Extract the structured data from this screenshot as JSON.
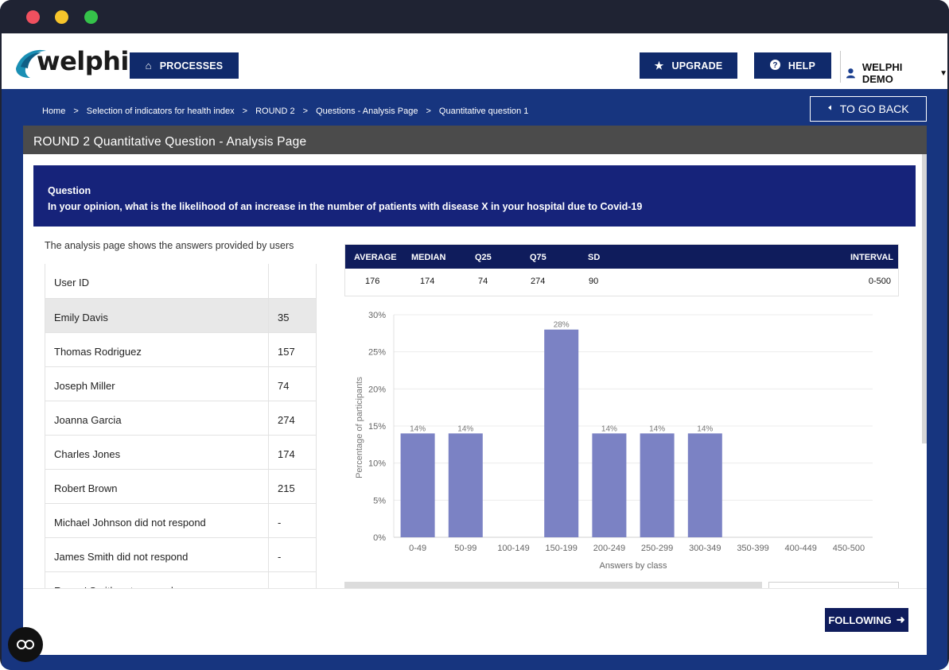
{
  "header": {
    "logo_text": "welphi",
    "processes_label": "PROCESSES",
    "upgrade_label": "UPGRADE",
    "help_label": "HELP",
    "user_name": "WELPHI DEMO"
  },
  "breadcrumb": [
    "Home",
    "Selection of indicators for health index",
    "ROUND 2",
    "Questions - Analysis Page",
    "Quantitative question 1"
  ],
  "go_back_label": "TO GO BACK",
  "panel_title": "ROUND 2 Quantitative Question - Analysis Page",
  "question": {
    "label": "Question",
    "text": "In your opinion, what is the likelihood of an increase in the number of patients with disease X in your hospital due to Covid-19"
  },
  "intro_text": "The analysis page shows the answers provided by users",
  "table": {
    "header": "User ID",
    "rows": [
      {
        "name": "Emily Davis",
        "value": "35"
      },
      {
        "name": "Thomas Rodriguez",
        "value": "157"
      },
      {
        "name": "Joseph Miller",
        "value": "74"
      },
      {
        "name": "Joanna Garcia",
        "value": "274"
      },
      {
        "name": "Charles Jones",
        "value": "174"
      },
      {
        "name": "Robert Brown",
        "value": "215"
      },
      {
        "name": "Michael Johnson did not respond",
        "value": "-"
      },
      {
        "name": "James Smith did not respond",
        "value": "-"
      },
      {
        "name": "Renee' Smith not respond",
        "value": ""
      }
    ]
  },
  "stats": {
    "headers": [
      "AVERAGE",
      "MEDIAN",
      "Q25",
      "Q75",
      "SD",
      "INTERVAL"
    ],
    "values": [
      "176",
      "174",
      "74",
      "274",
      "90",
      "0-500"
    ]
  },
  "chart_data": {
    "type": "bar",
    "categories": [
      "0-49",
      "50-99",
      "100-149",
      "150-199",
      "200-249",
      "250-299",
      "300-349",
      "350-399",
      "400-449",
      "450-500"
    ],
    "values": [
      14,
      14,
      0,
      28,
      14,
      14,
      14,
      0,
      0,
      0
    ],
    "data_labels": [
      "14%",
      "14%",
      "",
      "28%",
      "14%",
      "14%",
      "14%",
      "",
      "",
      ""
    ],
    "yticks": [
      "0%",
      "5%",
      "10%",
      "15%",
      "20%",
      "25%",
      "30%"
    ],
    "ylim": [
      0,
      30
    ],
    "xlabel": "Answers by class",
    "ylabel": "Percentage of participants",
    "bar_color": "#7b82c4",
    "grid": true
  },
  "following_label": "FOLLOWING"
}
